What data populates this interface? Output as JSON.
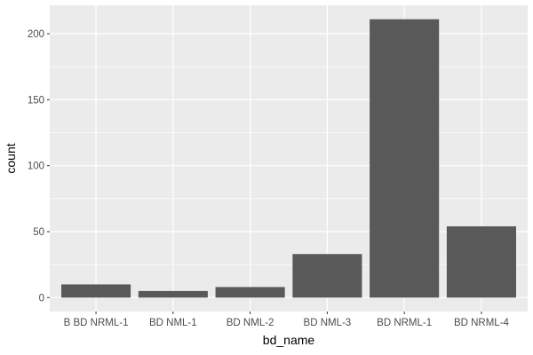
{
  "chart_data": {
    "type": "bar",
    "categories": [
      "B BD NRML-1",
      "BD NML-1",
      "BD NML-2",
      "BD NML-3",
      "BD NRML-1",
      "BD NRML-4"
    ],
    "values": [
      10,
      5,
      8,
      33,
      211,
      54
    ],
    "xlabel": "bd_name",
    "ylabel": "count",
    "ylim": [
      -10.55,
      221.55
    ],
    "yticks": [
      0,
      50,
      100,
      150,
      200
    ],
    "grid": true,
    "colors": {
      "panel": "#ebebeb",
      "grid_major": "#ffffff",
      "bar": "#595959"
    }
  }
}
